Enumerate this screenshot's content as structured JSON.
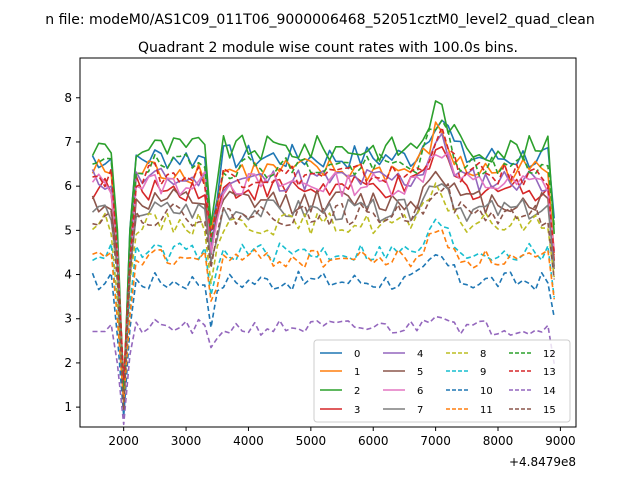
{
  "chart_data": {
    "type": "line",
    "suptitle": "n file: modeM0/AS1C09_011T06_9000006468_52051cztM0_level2_quad_clean",
    "title": "Quadrant 2 module wise count rates with 100.0s bins.",
    "xlabel": "",
    "ylabel": "",
    "x_offset_label": "+4.8479e8",
    "xlim": [
      1300,
      9250
    ],
    "ylim": [
      0.55,
      8.9
    ],
    "x_ticks": [
      2000,
      3000,
      4000,
      5000,
      6000,
      7000,
      8000,
      9000
    ],
    "y_ticks": [
      1,
      2,
      3,
      4,
      5,
      6,
      7,
      8
    ],
    "legend_location": "lower-right",
    "legend_columns": 4,
    "x_start": 1500,
    "x_step": 100,
    "series": [
      {
        "name": "0",
        "color": "#1f77b4",
        "linestyle": "solid",
        "base": 6.65,
        "amp": 0.3
      },
      {
        "name": "1",
        "color": "#ff7f0e",
        "linestyle": "solid",
        "base": 6.35,
        "amp": 0.3
      },
      {
        "name": "2",
        "color": "#2ca02c",
        "linestyle": "solid",
        "base": 6.85,
        "amp": 0.3
      },
      {
        "name": "3",
        "color": "#d62728",
        "linestyle": "solid",
        "base": 5.95,
        "amp": 0.28
      },
      {
        "name": "4",
        "color": "#9467bd",
        "linestyle": "solid",
        "base": 6.15,
        "amp": 0.28
      },
      {
        "name": "5",
        "color": "#8c564b",
        "linestyle": "solid",
        "base": 5.65,
        "amp": 0.28
      },
      {
        "name": "6",
        "color": "#e377c2",
        "linestyle": "solid",
        "base": 6.05,
        "amp": 0.28
      },
      {
        "name": "7",
        "color": "#7f7f7f",
        "linestyle": "solid",
        "base": 5.45,
        "amp": 0.25
      },
      {
        "name": "8",
        "color": "#bcbd22",
        "linestyle": "dashed",
        "base": 5.15,
        "amp": 0.25
      },
      {
        "name": "9",
        "color": "#17becf",
        "linestyle": "dashed",
        "base": 4.5,
        "amp": 0.22
      },
      {
        "name": "10",
        "color": "#1f77b4",
        "linestyle": "dashed",
        "base": 3.85,
        "amp": 0.22
      },
      {
        "name": "11",
        "color": "#ff7f0e",
        "linestyle": "dashed",
        "base": 4.35,
        "amp": 0.22
      },
      {
        "name": "12",
        "color": "#2ca02c",
        "linestyle": "dashed",
        "base": 6.45,
        "amp": 0.28
      },
      {
        "name": "13",
        "color": "#d62728",
        "linestyle": "dashed",
        "base": 6.25,
        "amp": 0.28
      },
      {
        "name": "14",
        "color": "#9467bd",
        "linestyle": "dashed",
        "base": 2.8,
        "amp": 0.18
      },
      {
        "name": "15",
        "color": "#8c564b",
        "linestyle": "dashed",
        "base": 5.35,
        "amp": 0.25
      }
    ]
  }
}
